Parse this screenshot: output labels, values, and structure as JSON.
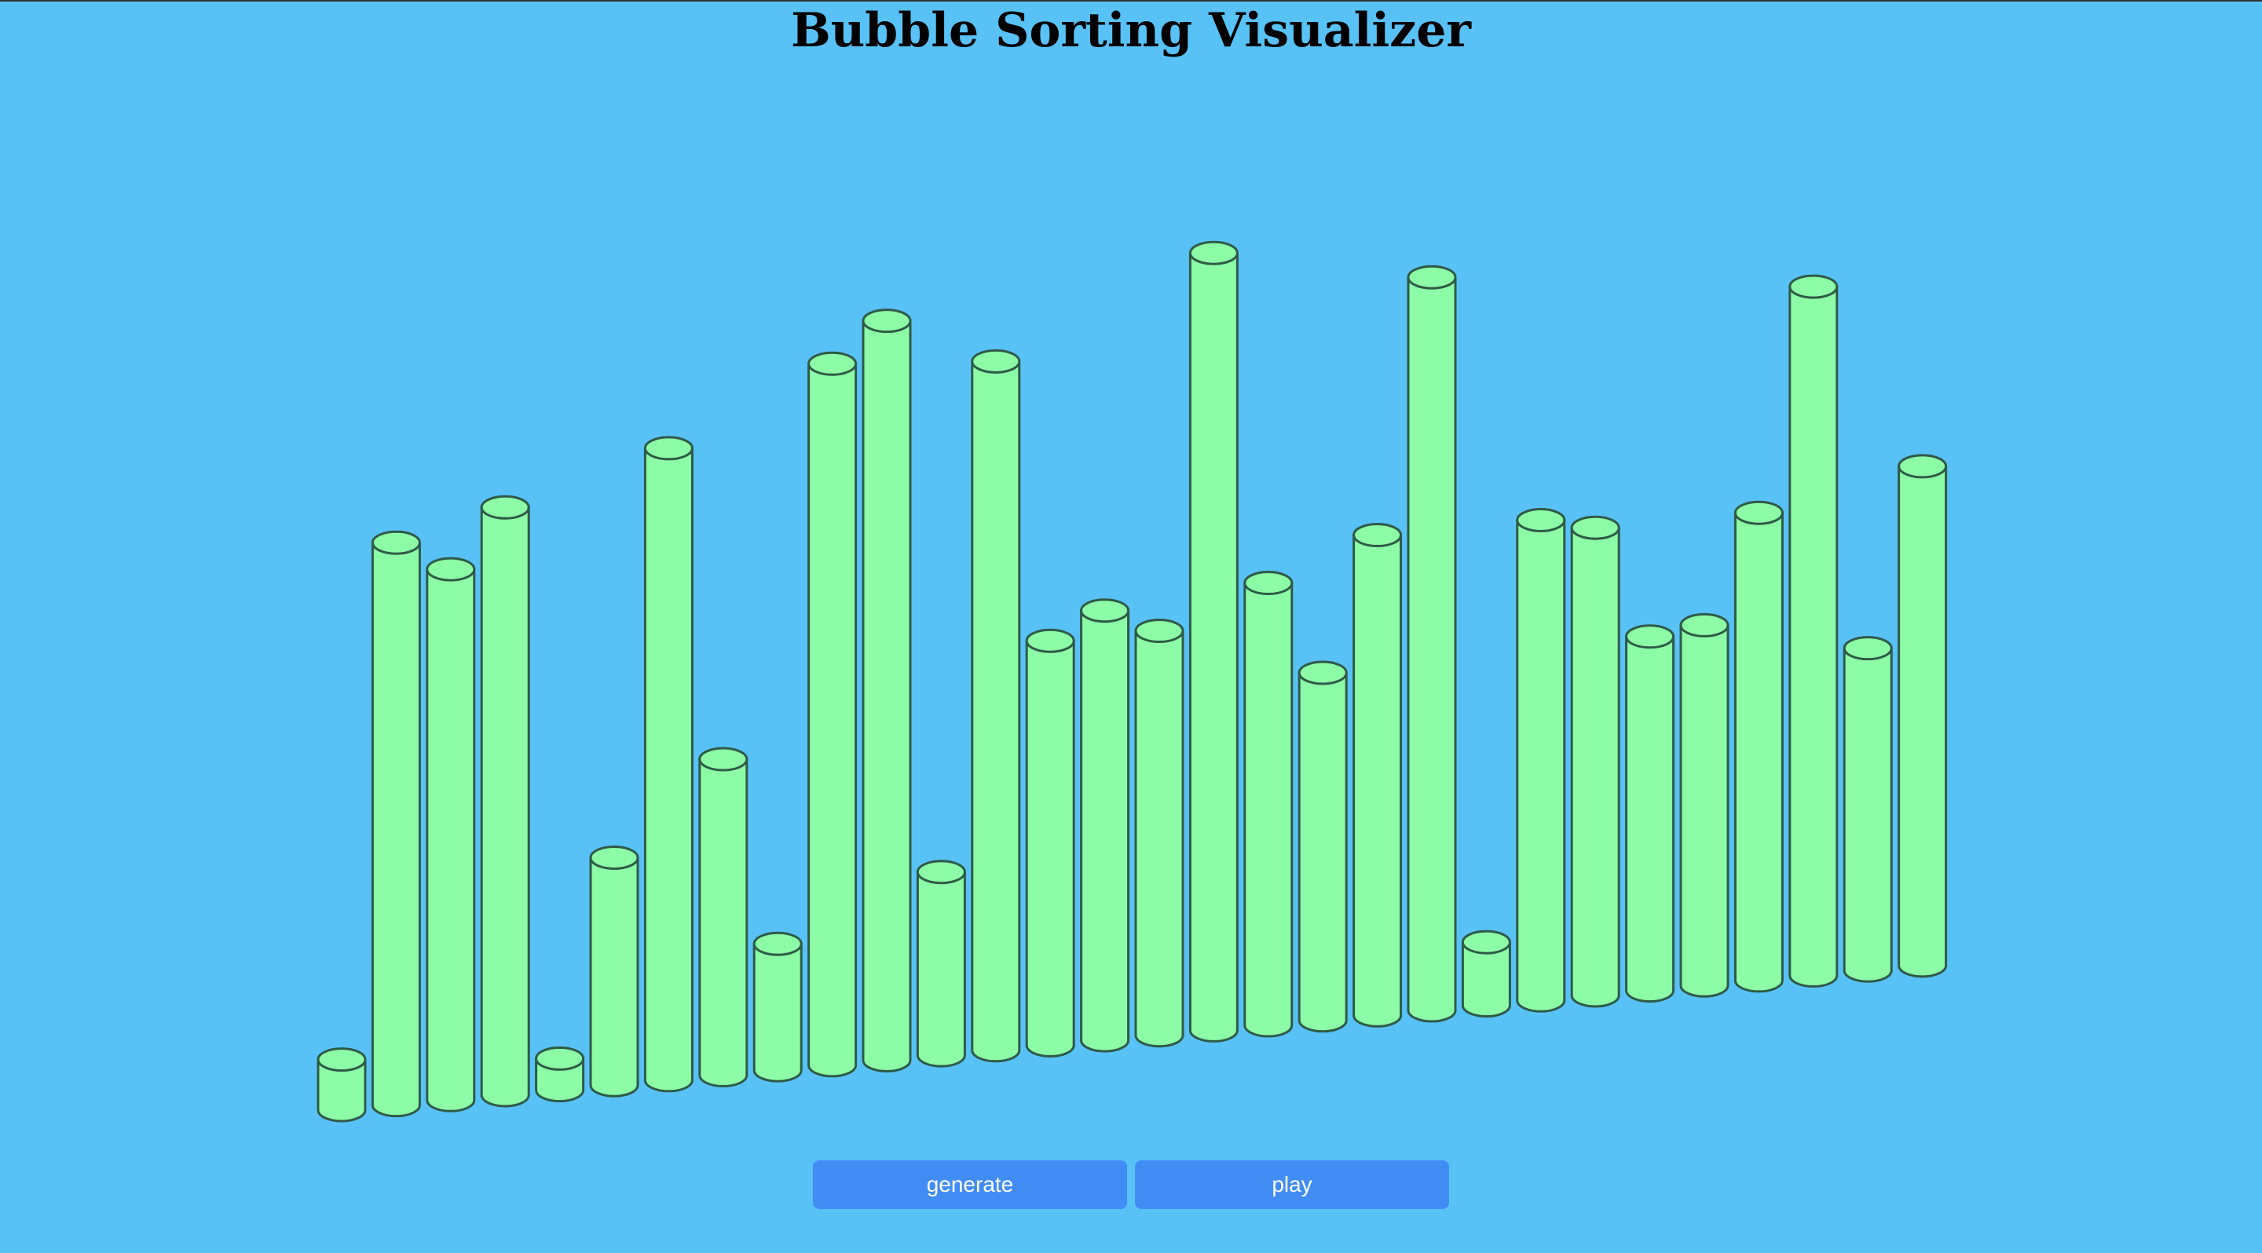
{
  "page": {
    "title": "Bubble Sorting Visualizer"
  },
  "controls": {
    "generate_label": "generate",
    "play_label": "play"
  },
  "colors": {
    "background": "#58c2f7",
    "bar_fill": "#8cfca7",
    "bar_stroke": "#2f5a47",
    "button": "#428cf6",
    "button_text": "#ffffff"
  },
  "array": {
    "values": [
      8,
      89,
      84,
      93,
      5,
      36,
      100,
      50,
      20,
      111,
      117,
      29,
      109,
      64,
      68,
      64,
      123,
      70,
      55,
      76,
      116,
      10,
      76,
      74,
      56,
      57,
      74,
      109,
      51,
      79
    ]
  }
}
